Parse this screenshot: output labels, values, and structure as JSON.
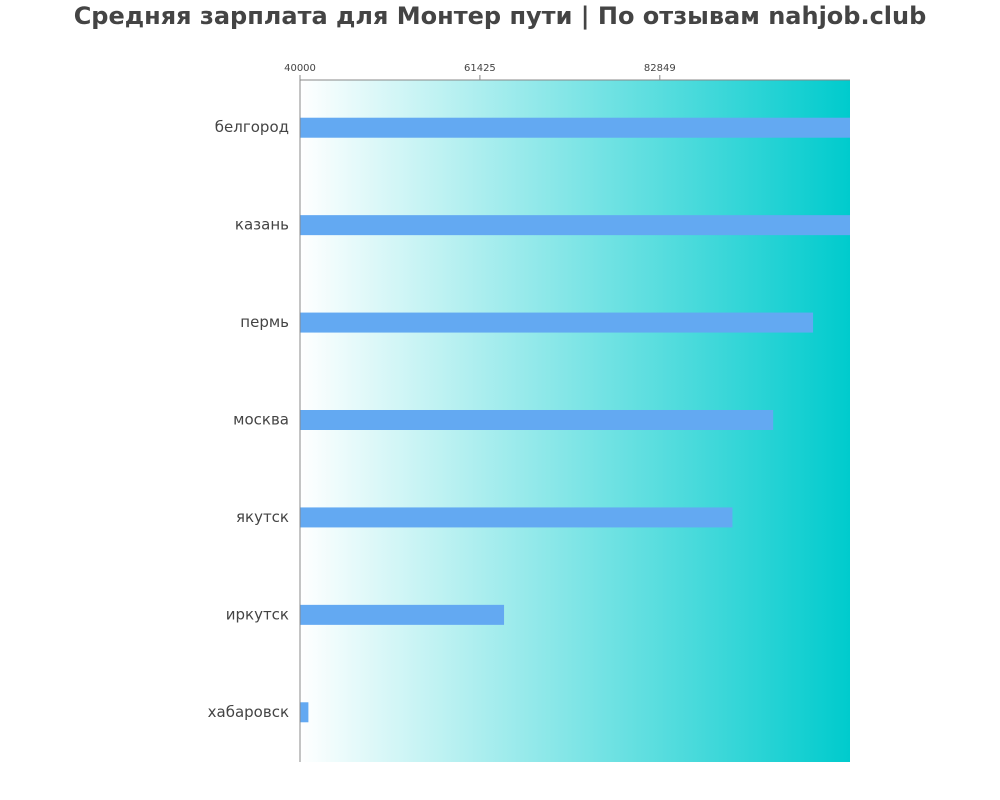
{
  "chart_data": {
    "type": "bar",
    "orientation": "horizontal",
    "title": "Средняя зарплата для Монтер пути | По отзывам nahjob.club",
    "xlabel": "",
    "ylabel": "",
    "categories": [
      "белгород",
      "казань",
      "пермь",
      "москва",
      "якутск",
      "иркутск",
      "хабаровск"
    ],
    "values": [
      108000,
      108000,
      101100,
      96350,
      91500,
      64300,
      41000
    ],
    "xlim": [
      40000,
      105500
    ],
    "xticks": [
      40000,
      61425,
      82849
    ],
    "xtick_labels": [
      "40000",
      "61425",
      "82849"
    ],
    "xaxis_position": "top",
    "grid": false,
    "legend": "none",
    "colors": {
      "bar": "#63a9f2",
      "background_start": "#ffffff",
      "background_end": "#00cbcd",
      "axis": "#888888",
      "text": "#444444"
    }
  }
}
